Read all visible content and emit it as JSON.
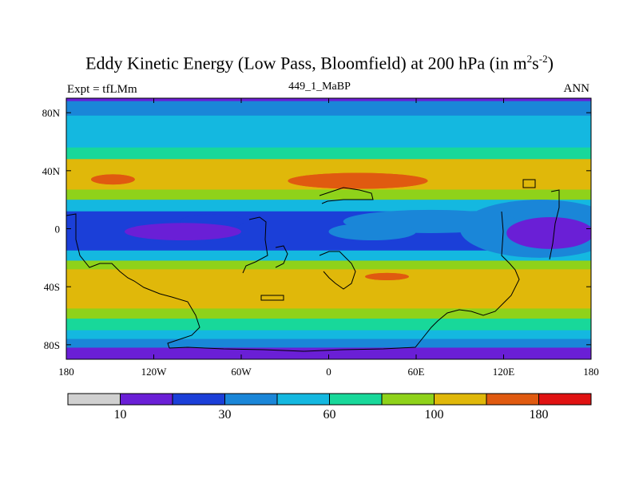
{
  "chart_data": {
    "type": "heatmap",
    "title_main": "Eddy Kinetic Energy (Low Pass, Bloomfield) at 200 hPa (in m",
    "title_sup1": "2",
    "title_mid": "s",
    "title_sup2": "-2",
    "title_end": ")",
    "left_label": "Expt = tfLMm",
    "center_label": "449_1_MaBP",
    "right_label": "ANN",
    "xlim": [
      -180,
      180
    ],
    "ylim": [
      -90,
      90
    ],
    "x_ticks": [
      {
        "value": -180,
        "label": "180"
      },
      {
        "value": -120,
        "label": "120W"
      },
      {
        "value": -60,
        "label": "60W"
      },
      {
        "value": 0,
        "label": "0"
      },
      {
        "value": 60,
        "label": "60E"
      },
      {
        "value": 120,
        "label": "120E"
      },
      {
        "value": 180,
        "label": "180"
      }
    ],
    "y_ticks": [
      {
        "value": 80,
        "label": "80N"
      },
      {
        "value": 40,
        "label": "40N"
      },
      {
        "value": 0,
        "label": "0"
      },
      {
        "value": -40,
        "label": "40S"
      },
      {
        "value": -80,
        "label": "80S"
      }
    ],
    "colorbar": {
      "colors": [
        "#d0d0d0",
        "#6a1fd6",
        "#1b3fd8",
        "#1a86d8",
        "#14b8e0",
        "#18d89a",
        "#8fd21a",
        "#e0b80a",
        "#e05a10",
        "#e01212"
      ],
      "labels": [
        {
          "boundary": 1,
          "label": "10"
        },
        {
          "boundary": 3,
          "label": "30"
        },
        {
          "boundary": 5,
          "label": "60"
        },
        {
          "boundary": 7,
          "label": "100"
        },
        {
          "boundary": 9,
          "label": "180"
        }
      ]
    },
    "zonal_levels": [
      {
        "lat_from": 90,
        "lat_to": 88,
        "level": 1
      },
      {
        "lat_from": 88,
        "lat_to": 78,
        "level": 3
      },
      {
        "lat_from": 78,
        "lat_to": 70,
        "level": 4
      },
      {
        "lat_from": 70,
        "lat_to": 56,
        "level": 4
      },
      {
        "lat_from": 56,
        "lat_to": 48,
        "level": 5
      },
      {
        "lat_from": 48,
        "lat_to": 27,
        "level": 7
      },
      {
        "lat_from": 27,
        "lat_to": 20,
        "level": 6
      },
      {
        "lat_from": 20,
        "lat_to": 12,
        "level": 4
      },
      {
        "lat_from": 12,
        "lat_to": -15,
        "level": 2
      },
      {
        "lat_from": -15,
        "lat_to": -22,
        "level": 4
      },
      {
        "lat_from": -22,
        "lat_to": -28,
        "level": 6
      },
      {
        "lat_from": -28,
        "lat_to": -55,
        "level": 7
      },
      {
        "lat_from": -55,
        "lat_to": -62,
        "level": 6
      },
      {
        "lat_from": -62,
        "lat_to": -70,
        "level": 5
      },
      {
        "lat_from": -70,
        "lat_to": -76,
        "level": 4
      },
      {
        "lat_from": -76,
        "lat_to": -82,
        "level": 3
      },
      {
        "lat_from": -82,
        "lat_to": -90,
        "level": 1
      }
    ],
    "features": [
      {
        "lon": -148,
        "lat": 34,
        "rlon": 15,
        "rlat": 3.5,
        "level": 8
      },
      {
        "lon": 20,
        "lat": 33,
        "rlon": 48,
        "rlat": 5.5,
        "level": 8
      },
      {
        "lon": 40,
        "lat": -33,
        "rlon": 15,
        "rlat": 2.5,
        "level": 8
      },
      {
        "lon": 152,
        "lat": -3,
        "rlon": 30,
        "rlat": 11,
        "level": 1
      },
      {
        "lon": 145,
        "lat": 0,
        "rlon": 55,
        "rlat": 20,
        "level": 3
      },
      {
        "lon": 70,
        "lat": 5,
        "rlon": 60,
        "rlat": 8,
        "level": 3
      },
      {
        "lon": 30,
        "lat": -2,
        "rlon": 30,
        "rlat": 6,
        "level": 3
      },
      {
        "lon": -80,
        "lat": 5,
        "rlon": 22,
        "rlat": 5,
        "level": 2
      },
      {
        "lon": -100,
        "lat": -2,
        "rlon": 40,
        "rlat": 6,
        "level": 1
      }
    ]
  }
}
